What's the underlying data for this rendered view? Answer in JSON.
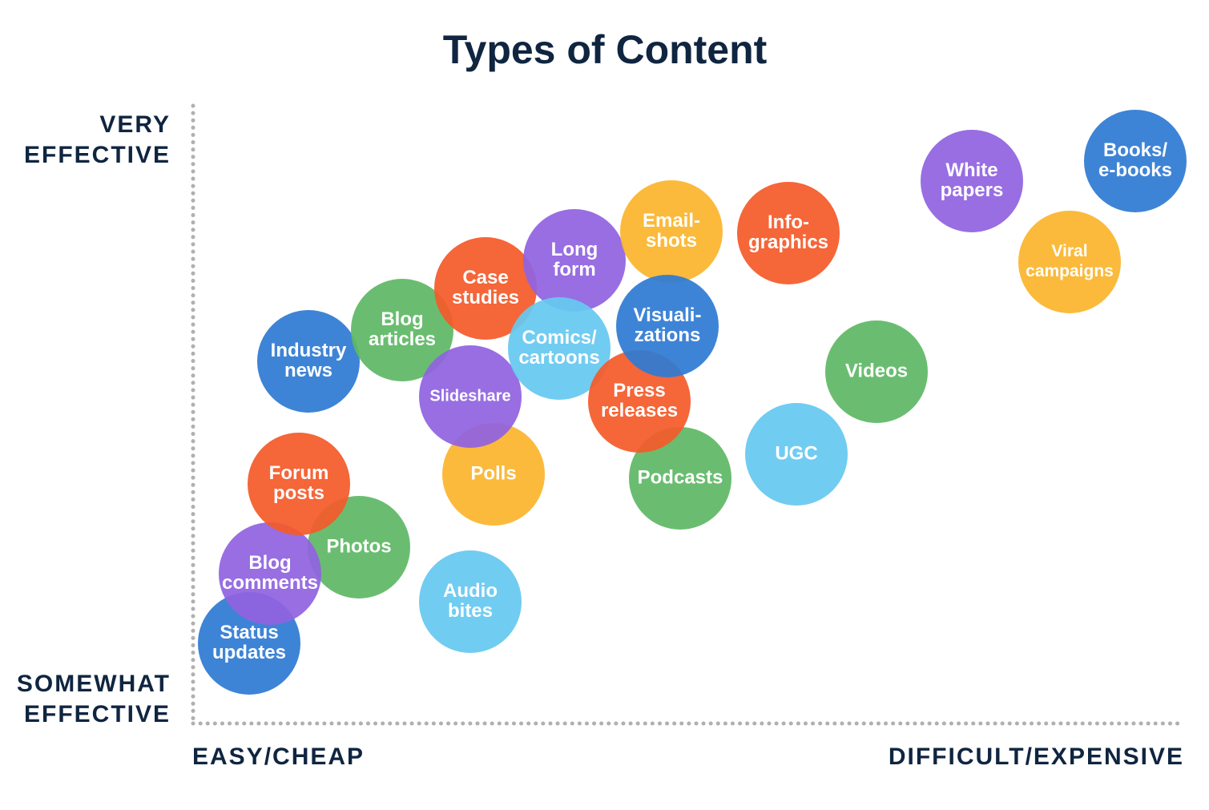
{
  "title": "Types of Content",
  "y_axis": {
    "top": [
      "VERY",
      "EFFECTIVE"
    ],
    "bottom": [
      "SOMEWHAT",
      "EFFECTIVE"
    ]
  },
  "x_axis": {
    "left": "EASY/CHEAP",
    "right": "DIFFICULT/EXPENSIVE"
  },
  "nodes": [
    {
      "label": [
        "Status",
        "updates"
      ],
      "color": "#2f7bd3"
    },
    {
      "label": [
        "Photos"
      ],
      "color": "#5fb865"
    },
    {
      "label": [
        "Blog",
        "comments"
      ],
      "color": "#9063e0"
    },
    {
      "label": [
        "Forum",
        "posts"
      ],
      "color": "#f45a2a"
    },
    {
      "label": [
        "Audio",
        "bites"
      ],
      "color": "#66c8f0"
    },
    {
      "label": [
        "Industry",
        "news"
      ],
      "color": "#2f7bd3"
    },
    {
      "label": [
        "Blog",
        "articles"
      ],
      "color": "#5fb865"
    },
    {
      "label": [
        "Case",
        "studies"
      ],
      "color": "#f45a2a"
    },
    {
      "label": [
        "Long",
        "form"
      ],
      "color": "#9063e0"
    },
    {
      "label": [
        "Email-",
        "shots"
      ],
      "color": "#fbb52c"
    },
    {
      "label": [
        "Polls"
      ],
      "color": "#fbb52c"
    },
    {
      "label": [
        "Slideshare"
      ],
      "color": "#9063e0"
    },
    {
      "label": [
        "Comics/",
        "cartoons"
      ],
      "color": "#66c8f0"
    },
    {
      "label": [
        "Podcasts"
      ],
      "color": "#5fb865"
    },
    {
      "label": [
        "Press",
        "releases"
      ],
      "color": "#f45a2a"
    },
    {
      "label": [
        "Visuali-",
        "zations"
      ],
      "color": "#2f7bd3"
    },
    {
      "label": [
        "Info-",
        "graphics"
      ],
      "color": "#f45a2a"
    },
    {
      "label": [
        "UGC"
      ],
      "color": "#66c8f0"
    },
    {
      "label": [
        "Videos"
      ],
      "color": "#5fb865"
    },
    {
      "label": [
        "White",
        "papers"
      ],
      "color": "#9063e0"
    },
    {
      "label": [
        "Viral",
        "campaigns"
      ],
      "color": "#fbb52c"
    },
    {
      "label": [
        "Books/",
        "e-books"
      ],
      "color": "#2f7bd3"
    }
  ]
}
